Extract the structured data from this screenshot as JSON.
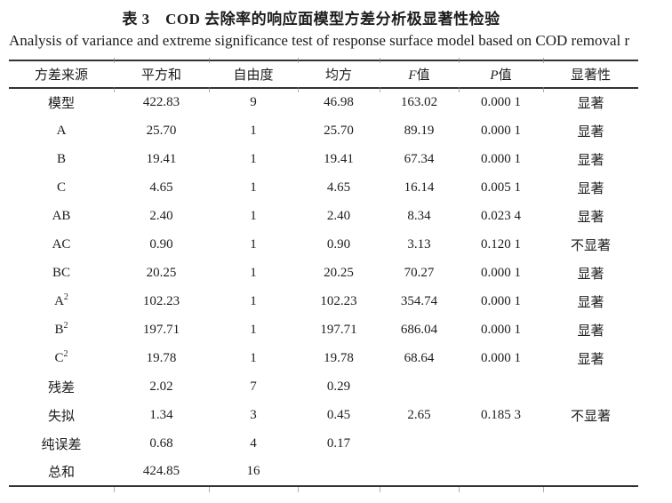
{
  "caption": {
    "zh": "表 3　COD 去除率的响应面模型方差分析极显著性检验",
    "en": "Analysis of variance and extreme significance test of response surface model based on COD removal r"
  },
  "table": {
    "headers": [
      {
        "i": "",
        "t": "方差来源"
      },
      {
        "i": "",
        "t": "平方和"
      },
      {
        "i": "",
        "t": "自由度"
      },
      {
        "i": "",
        "t": "均方"
      },
      {
        "i": "F",
        "t": "值"
      },
      {
        "i": "P",
        "t": "值"
      },
      {
        "i": "",
        "t": "显著性"
      }
    ],
    "rows": [
      [
        "模型",
        "422.83",
        "9",
        "46.98",
        "163.02",
        "0.000 1",
        "显著"
      ],
      [
        "A",
        "25.70",
        "1",
        "25.70",
        "89.19",
        "0.000 1",
        "显著"
      ],
      [
        "B",
        "19.41",
        "1",
        "19.41",
        "67.34",
        "0.000 1",
        "显著"
      ],
      [
        "C",
        "4.65",
        "1",
        "4.65",
        "16.14",
        "0.005 1",
        "显著"
      ],
      [
        "AB",
        "2.40",
        "1",
        "2.40",
        "8.34",
        "0.023 4",
        "显著"
      ],
      [
        "AC",
        "0.90",
        "1",
        "0.90",
        "3.13",
        "0.120 1",
        "不显著"
      ],
      [
        "BC",
        "20.25",
        "1",
        "20.25",
        "70.27",
        "0.000 1",
        "显著"
      ],
      [
        "A²",
        "102.23",
        "1",
        "102.23",
        "354.74",
        "0.000 1",
        "显著"
      ],
      [
        "B²",
        "197.71",
        "1",
        "197.71",
        "686.04",
        "0.000 1",
        "显著"
      ],
      [
        "C²",
        "19.78",
        "1",
        "19.78",
        "68.64",
        "0.000 1",
        "显著"
      ],
      [
        "残差",
        "2.02",
        "7",
        "0.29",
        "",
        "",
        ""
      ],
      [
        "失拟",
        "1.34",
        "3",
        "0.45",
        "2.65",
        "0.185 3",
        "不显著"
      ],
      [
        "纯误差",
        "0.68",
        "4",
        "0.17",
        "",
        "",
        ""
      ],
      [
        "总和",
        "424.85",
        "16",
        "",
        "",
        "",
        ""
      ]
    ]
  },
  "colors": {
    "background": "#ffffff",
    "text": "#1c1c1c",
    "rule": "#333333",
    "tick": "#8b8b8b"
  }
}
